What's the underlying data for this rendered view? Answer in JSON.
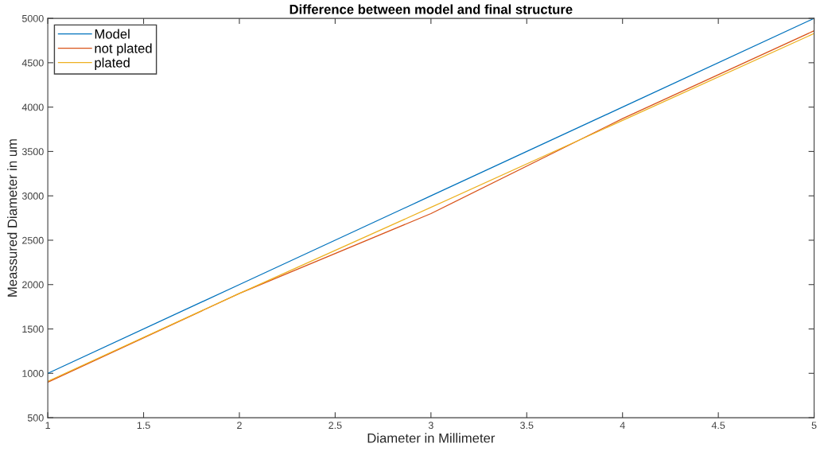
{
  "chart_data": {
    "type": "line",
    "title": "Difference between model and final structure",
    "xlabel": "Diameter in Millimeter",
    "ylabel": "Meassured Diameter in um",
    "x": [
      1,
      2,
      3,
      4,
      5
    ],
    "series": [
      {
        "name": "Model",
        "color": "#0072bd",
        "values": [
          1000,
          2000,
          3000,
          4000,
          5000
        ]
      },
      {
        "name": "not plated",
        "color": "#d95319",
        "values": [
          900,
          1900,
          2800,
          3870,
          4860
        ]
      },
      {
        "name": "plated",
        "color": "#edb120",
        "values": [
          910,
          1900,
          2870,
          3850,
          4830
        ]
      }
    ],
    "xlim": [
      1,
      5
    ],
    "ylim": [
      500,
      5000
    ],
    "xticks": [
      1,
      1.5,
      2,
      2.5,
      3,
      3.5,
      4,
      4.5,
      5
    ],
    "yticks": [
      500,
      1000,
      1500,
      2000,
      2500,
      3000,
      3500,
      4000,
      4500,
      5000
    ],
    "grid": false,
    "legend": "top left",
    "marker": "none",
    "line_style": "solid"
  }
}
